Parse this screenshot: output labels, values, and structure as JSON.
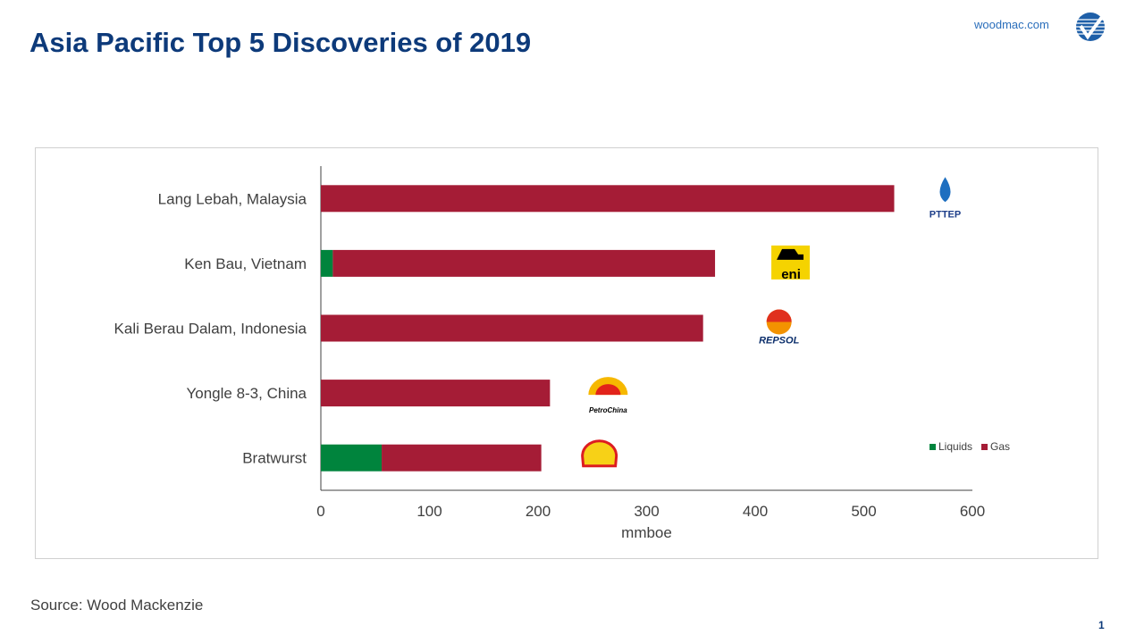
{
  "header": {
    "title": "Asia Pacific Top 5 Discoveries of 2019",
    "site": "woodmac.com"
  },
  "footer": {
    "source": "Source: Wood Mackenzie",
    "page": "1"
  },
  "chart_data": {
    "type": "bar",
    "orientation": "horizontal",
    "stacked": true,
    "categories": [
      "Lang Lebah, Malaysia",
      "Ken Bau, Vietnam",
      "Kali Berau Dalam, Indonesia",
      "Yongle 8-3, China",
      "Bratwurst"
    ],
    "series": [
      {
        "name": "Liquids",
        "color": "#00843d",
        "values": [
          0,
          11,
          0,
          0,
          56
        ]
      },
      {
        "name": "Gas",
        "color": "#a51c36",
        "values": [
          528,
          352,
          352,
          211,
          147
        ]
      }
    ],
    "operators": [
      "PTTEP",
      "eni",
      "REPSOL",
      "PetroChina",
      "Shell"
    ],
    "xlabel": "mmboe",
    "ylabel": "",
    "xlim": [
      0,
      600
    ],
    "xticks": [
      "0",
      "100",
      "200",
      "300",
      "400",
      "500",
      "600"
    ],
    "legend": "right",
    "grid": false
  }
}
